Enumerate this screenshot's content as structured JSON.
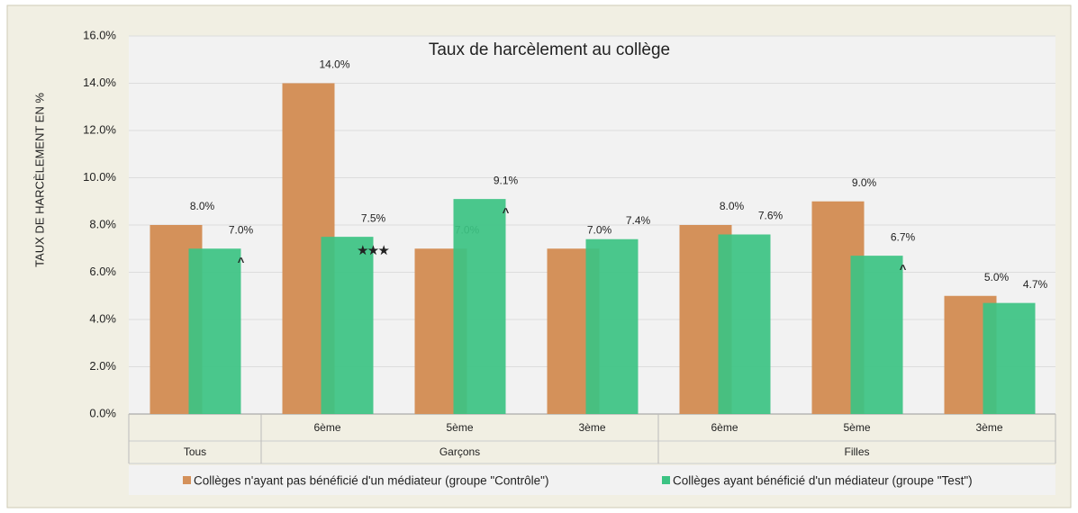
{
  "chart_data": {
    "type": "bar",
    "title": "Taux de harcèlement au collège",
    "y_label": "TAUX DE HARCÈLEMENT EN %",
    "categories": [
      null,
      "6ème",
      "5ème",
      "3ème",
      "6ème",
      "5ème",
      "3ème"
    ],
    "category_groups": [
      "Tous",
      "Garçons",
      "Garçons",
      "Garçons",
      "Filles",
      "Filles",
      "Filles"
    ],
    "series": [
      {
        "name": "Collèges n'ayant pas bénéficié d'un médiateur (groupe \"Contrôle\")",
        "color": "#d4915a",
        "values": [
          8.0,
          14.0,
          7.0,
          7.0,
          8.0,
          9.0,
          5.0
        ],
        "value_labels": [
          "8.0%",
          "14.0%",
          "7.0%",
          "7.0%",
          "8.0%",
          "9.0%",
          "5.0%"
        ]
      },
      {
        "name": "Collèges ayant bénéficié d'un médiateur (groupe \"Test\")",
        "color": "#3cc383",
        "values": [
          7.0,
          7.5,
          9.1,
          7.4,
          7.6,
          6.7,
          4.7
        ],
        "value_labels": [
          "7.0%",
          "7.5%",
          "9.1%",
          "7.4%",
          "7.6%",
          "6.7%",
          "4.7%"
        ],
        "markers": [
          "^",
          "★★★",
          "^",
          null,
          null,
          "^",
          null
        ]
      }
    ],
    "ylim": [
      0,
      16
    ],
    "yticks": [
      {
        "value": 0,
        "label": "0.0%"
      },
      {
        "value": 2,
        "label": "2.0%"
      },
      {
        "value": 4,
        "label": "4.0%"
      },
      {
        "value": 6,
        "label": "6.0%"
      },
      {
        "value": 8,
        "label": "8.0%"
      },
      {
        "value": 10,
        "label": "10.0%"
      },
      {
        "value": 12,
        "label": "12.0%"
      },
      {
        "value": 14,
        "label": "14.0%"
      },
      {
        "value": 16,
        "label": "16.0%"
      }
    ],
    "grid": true,
    "legend": "bottom"
  }
}
